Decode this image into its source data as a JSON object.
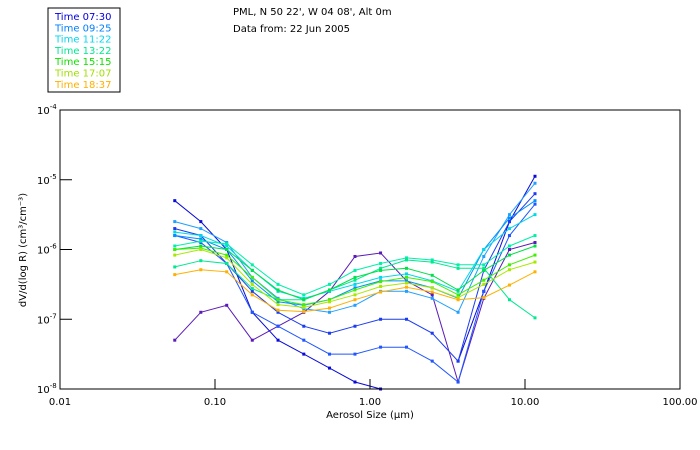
{
  "header": {
    "line1": "PML, N 50 22', W 04 08', Alt 0m",
    "line2": "Data from: 22 Jun 2005"
  },
  "legend": [
    {
      "label": "Time 07:30",
      "color": "#0000e0"
    },
    {
      "label": "Time 09:25",
      "color": "#0080ff"
    },
    {
      "label": "Time 11:22",
      "color": "#00d8f0"
    },
    {
      "label": "Time 13:22",
      "color": "#00e890"
    },
    {
      "label": "Time 15:15",
      "color": "#10e000"
    },
    {
      "label": "Time 17:07",
      "color": "#a0e000"
    },
    {
      "label": "Time 18:37",
      "color": "#ffb000"
    }
  ],
  "chart_data": {
    "type": "line",
    "xlabel": "Aerosol Size (µm)",
    "ylabel": "dV/d(log R)  (cm³/cm⁻³)",
    "xscale": "log",
    "yscale": "log",
    "xlim": [
      0.01,
      100
    ],
    "ylim_log10": [
      -8,
      -4
    ],
    "x_ticks": [
      "0.01",
      "0.10",
      "1.00",
      "10.00",
      "100.00"
    ],
    "y_ticks": [
      {
        "base": "10",
        "exp": "-4"
      },
      {
        "base": "10",
        "exp": "-5"
      },
      {
        "base": "10",
        "exp": "-6"
      },
      {
        "base": "10",
        "exp": "-7"
      },
      {
        "base": "10",
        "exp": "-8"
      }
    ],
    "x": [
      0.055,
      0.081,
      0.119,
      0.174,
      0.255,
      0.374,
      0.548,
      0.8,
      1.17,
      1.72,
      2.52,
      3.7,
      5.42,
      7.94,
      11.6
    ],
    "series_log10_y": [
      {
        "color": "#5a1ab8",
        "values": [
          -7.3,
          -6.9,
          -6.8,
          -7.3,
          -7.1,
          -6.9,
          -6.6,
          -6.1,
          -6.05,
          -6.45,
          -6.65,
          -7.9,
          -6.7,
          -6.0,
          -5.9
        ]
      },
      {
        "color": "#0a0ad8",
        "values": [
          -5.3,
          -5.6,
          -6.0,
          -6.9,
          -7.3,
          -7.5,
          -7.7,
          -7.9,
          -8.0,
          null,
          null,
          -7.6,
          -6.6,
          -5.6,
          -4.95
        ]
      },
      {
        "color": "#1a3cf0",
        "values": [
          -5.7,
          -5.8,
          -6.2,
          -6.6,
          -6.9,
          -7.1,
          -7.2,
          -7.1,
          -7.0,
          -7.0,
          -7.2,
          -7.6,
          -6.3,
          -5.6,
          -5.2
        ]
      },
      {
        "color": "#2056ff",
        "values": [
          -5.8,
          -5.9,
          -6.2,
          -6.9,
          -7.1,
          -7.3,
          -7.5,
          -7.5,
          -7.4,
          -7.4,
          -7.6,
          -7.9,
          -6.6,
          -5.8,
          -5.35
        ]
      },
      {
        "color": "#20a0ff",
        "values": [
          -5.6,
          -5.7,
          -5.9,
          -6.4,
          -6.7,
          -6.85,
          -6.9,
          -6.8,
          -6.6,
          -6.6,
          -6.7,
          -6.9,
          -6.1,
          -5.5,
          -5.05
        ]
      },
      {
        "color": "#0090ff",
        "values": [
          -5.8,
          -5.85,
          -6.0,
          -6.45,
          -6.75,
          -6.8,
          -6.72,
          -6.55,
          -6.45,
          -6.45,
          -6.55,
          -6.7,
          -6.0,
          -5.55,
          -5.3
        ]
      },
      {
        "color": "#00d8e8",
        "values": [
          -5.75,
          -5.8,
          -5.95,
          -6.3,
          -6.6,
          -6.7,
          -6.6,
          -6.5,
          -6.4,
          -6.35,
          -6.45,
          -6.6,
          -6.0,
          -5.7,
          -5.5
        ]
      },
      {
        "color": "#00f0a8",
        "values": [
          -5.95,
          -5.88,
          -5.92,
          -6.22,
          -6.5,
          -6.65,
          -6.5,
          -6.3,
          -6.2,
          -6.12,
          -6.15,
          -6.22,
          -6.22,
          -5.95,
          -5.8
        ]
      },
      {
        "color": "#00e890",
        "values": [
          -6.25,
          -6.16,
          -6.2,
          -6.56,
          -6.72,
          -6.72,
          -6.58,
          -6.44,
          -6.27,
          -6.15,
          -6.18,
          -6.27,
          -6.27,
          -6.72,
          -6.98
        ]
      },
      {
        "color": "#00e048",
        "values": [
          -6.0,
          -5.95,
          -6.0,
          -6.3,
          -6.58,
          -6.72,
          -6.58,
          -6.4,
          -6.3,
          -6.27,
          -6.37,
          -6.58,
          -6.3,
          -6.08,
          -5.95
        ]
      },
      {
        "color": "#40f000",
        "values": [
          -6.0,
          -5.98,
          -6.08,
          -6.4,
          -6.72,
          -6.79,
          -6.72,
          -6.58,
          -6.46,
          -6.4,
          -6.46,
          -6.65,
          -6.44,
          -6.22,
          -6.08
        ]
      },
      {
        "color": "#a8e800",
        "values": [
          -6.08,
          -6.0,
          -6.12,
          -6.5,
          -6.79,
          -6.83,
          -6.75,
          -6.65,
          -6.53,
          -6.48,
          -6.55,
          -6.69,
          -6.5,
          -6.29,
          -6.18
        ]
      },
      {
        "color": "#ffb000",
        "values": [
          -6.36,
          -6.29,
          -6.32,
          -6.65,
          -6.87,
          -6.89,
          -6.84,
          -6.72,
          -6.61,
          -6.54,
          -6.61,
          -6.72,
          -6.69,
          -6.51,
          -6.32
        ]
      }
    ]
  }
}
